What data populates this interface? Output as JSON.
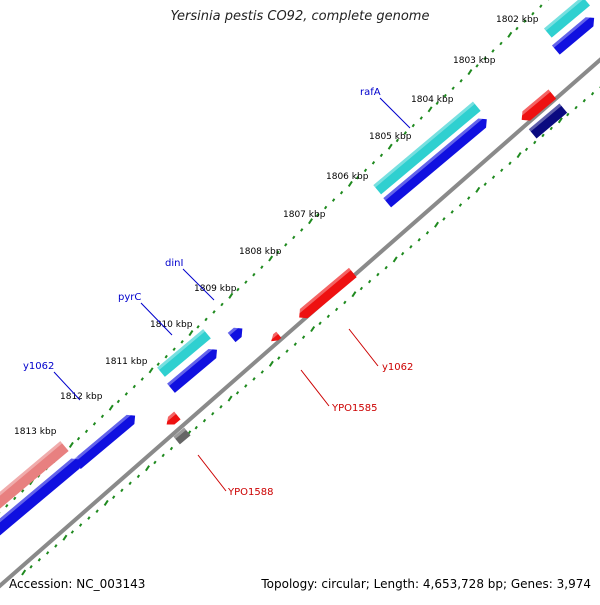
{
  "title": "Yersinia pestis CO92, complete genome",
  "footer": {
    "accession": "Accession: NC_003143",
    "summary": "Topology: circular; Length: 4,653,728 bp; Genes: 3,974"
  },
  "colors": {
    "backbone": "#8a8a8a",
    "tick": "#1f8a1f",
    "forward_cds_outer": "#2fd0d0",
    "forward_cds_inner": "#1010e0",
    "reverse_cds_outer": "#ee1111",
    "reverse_cds_inner": "#0a0a80",
    "reverse_grey": "#666666",
    "forward_pink": "#e88080",
    "label_forward": "#0000cc",
    "label_reverse": "#cc0000"
  },
  "scale_labels": [
    {
      "kbp": 1802,
      "text": "1802 kbp"
    },
    {
      "kbp": 1803,
      "text": "1803 kbp"
    },
    {
      "kbp": 1804,
      "text": "1804 kbp"
    },
    {
      "kbp": 1805,
      "text": "1805 kbp"
    },
    {
      "kbp": 1806,
      "text": "1806 kbp"
    },
    {
      "kbp": 1807,
      "text": "1807 kbp"
    },
    {
      "kbp": 1808,
      "text": "1808 kbp"
    },
    {
      "kbp": 1809,
      "text": "1809 kbp"
    },
    {
      "kbp": 1810,
      "text": "1810 kbp"
    },
    {
      "kbp": 1811,
      "text": "1811 kbp"
    },
    {
      "kbp": 1812,
      "text": "1812 kbp"
    },
    {
      "kbp": 1813,
      "text": "1813 kbp"
    }
  ],
  "gene_labels": {
    "forward": [
      "rafA",
      "dinI",
      "pyrC",
      "y1062"
    ],
    "reverse": [
      "y1062",
      "YPO1585",
      "YPO1588"
    ]
  }
}
